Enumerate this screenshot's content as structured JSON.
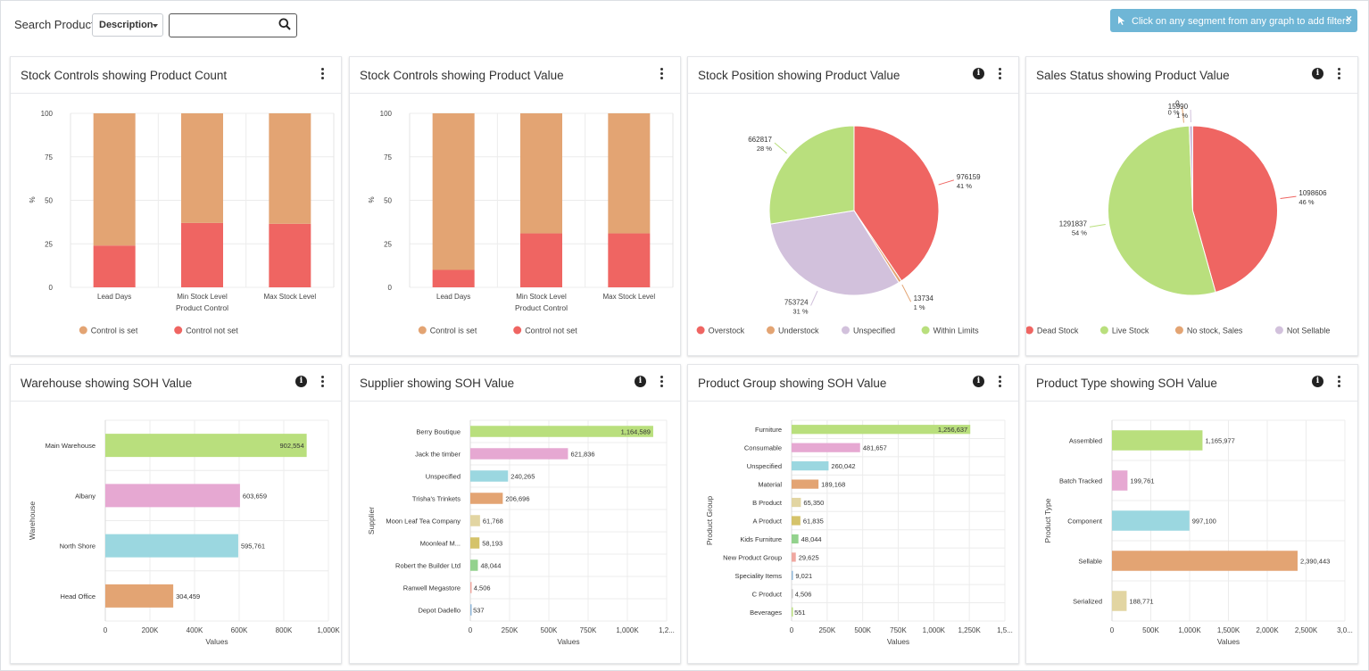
{
  "search": {
    "label": "Search Product",
    "field_selected": "Description",
    "value": ""
  },
  "hint": {
    "text": "Click on any segment from any graph to add filters",
    "close": "×"
  },
  "colors": {
    "orange": "#e3a473",
    "red": "#ef6562",
    "lavender": "#d2c1dc",
    "green": "#b9df7d",
    "pink": "#e6a8d2",
    "cyan": "#9bd7e0",
    "tan": "#e2d5a2",
    "olive": "#d5c36a",
    "lightgreen": "#93d28d",
    "salmon": "#f0a8a1",
    "blue": "#8fb7d9",
    "grey": "#c9c9c9"
  },
  "cards": [
    {
      "title": "Stock Controls showing Product Count",
      "info": false,
      "chart_data": {
        "type": "bar",
        "stacked": true,
        "categories": [
          "Lead Days",
          "Min Stock Level",
          "Max Stock Level"
        ],
        "xlabel": "Product Control",
        "ylabel": "%",
        "ylim": [
          0,
          100
        ],
        "yticks": [
          "0",
          "25",
          "50",
          "75",
          "100"
        ],
        "series": [
          {
            "name": "Control not set",
            "color": "#ef6562",
            "values": [
              24,
              37,
              36.5
            ]
          },
          {
            "name": "Control is set",
            "color": "#e3a473",
            "values": [
              76,
              63,
              63.5
            ]
          }
        ],
        "legend": [
          "Control is set",
          "Control not set"
        ]
      }
    },
    {
      "title": "Stock Controls showing Product Value",
      "info": false,
      "chart_data": {
        "type": "bar",
        "stacked": true,
        "categories": [
          "Lead Days",
          "Min Stock Level",
          "Max Stock Level"
        ],
        "xlabel": "Product Control",
        "ylabel": "%",
        "ylim": [
          0,
          100
        ],
        "yticks": [
          "0",
          "25",
          "50",
          "75",
          "100"
        ],
        "series": [
          {
            "name": "Control not set",
            "color": "#ef6562",
            "values": [
              10,
              31,
              31
            ]
          },
          {
            "name": "Control is set",
            "color": "#e3a473",
            "values": [
              90,
              69,
              69
            ]
          }
        ],
        "legend": [
          "Control is set",
          "Control not set"
        ]
      }
    },
    {
      "title": "Stock Position showing Product Value",
      "info": true,
      "chart_data": {
        "type": "pie",
        "slices": [
          {
            "name": "Overstock",
            "value": 976159,
            "label": "976159",
            "pct": "41 %",
            "color": "#ef6562"
          },
          {
            "name": "Understock",
            "value": 13734,
            "label": "13734",
            "pct": "1 %",
            "color": "#e3a473"
          },
          {
            "name": "Unspecified",
            "value": 753724,
            "label": "753724",
            "pct": "31 %",
            "color": "#d2c1dc"
          },
          {
            "name": "Within Limits",
            "value": 662817,
            "label": "662817",
            "pct": "28 %",
            "color": "#b9df7d"
          }
        ],
        "legend": [
          "Overstock",
          "Understock",
          "Unspecified",
          "Within Limits"
        ]
      }
    },
    {
      "title": "Sales Status showing Product Value",
      "info": true,
      "chart_data": {
        "type": "pie",
        "slices": [
          {
            "name": "Dead Stock",
            "value": 1098606,
            "label": "1098606",
            "pct": "46 %",
            "color": "#ef6562"
          },
          {
            "name": "Live Stock",
            "value": 1291837,
            "label": "1291837",
            "pct": "54 %",
            "color": "#b9df7d"
          },
          {
            "name": "No stock, Sales",
            "value": 0,
            "label": "0",
            "pct": "0 %",
            "color": "#e3a473"
          },
          {
            "name": "Not Sellable",
            "value": 15990,
            "label": "15990",
            "pct": "1 %",
            "color": "#d2c1dc"
          }
        ],
        "legend": [
          "Dead Stock",
          "Live Stock",
          "No stock, Sales",
          "Not Sellable"
        ]
      }
    },
    {
      "title": "Warehouse showing SOH Value",
      "info": true,
      "chart_data": {
        "type": "hbar",
        "ylabel": "Warehouse",
        "xlabel": "Values",
        "xlim": [
          0,
          1000000
        ],
        "xticks": [
          "0",
          "200K",
          "400K",
          "600K",
          "800K",
          "1,000K"
        ],
        "categories": [
          "Main Warehouse",
          "Albany",
          "North Shore",
          "Head Office"
        ],
        "values": [
          902554,
          603659,
          595761,
          304459
        ],
        "labels": [
          "902,554",
          "603,659",
          "595,761",
          "304,459"
        ],
        "colors": [
          "#b9df7d",
          "#e6a8d2",
          "#9bd7e0",
          "#e3a473"
        ]
      }
    },
    {
      "title": "Supplier showing SOH Value",
      "info": true,
      "chart_data": {
        "type": "hbar",
        "ylabel": "Supplier",
        "xlabel": "Values",
        "xlim": [
          0,
          1250000
        ],
        "xticks": [
          "0",
          "250K",
          "500K",
          "750K",
          "1,000K",
          "1,2..."
        ],
        "categories": [
          "Berry Boutique",
          "Jack the timber",
          "Unspecified",
          "Trisha's Trinkets",
          "Moon Leaf Tea Company",
          "Moonleaf M...",
          "Robert the Builder Ltd",
          "Ranwell Megastore",
          "Depot Dadello"
        ],
        "values": [
          1164589,
          621836,
          240265,
          206696,
          61768,
          58193,
          48044,
          4506,
          537
        ],
        "labels": [
          "1,164,589",
          "621,836",
          "240,265",
          "206,696",
          "61,768",
          "58,193",
          "48,044",
          "4,506",
          "537"
        ],
        "colors": [
          "#b9df7d",
          "#e6a8d2",
          "#9bd7e0",
          "#e3a473",
          "#e2d5a2",
          "#d5c36a",
          "#93d28d",
          "#f0a8a1",
          "#8fb7d9"
        ]
      }
    },
    {
      "title": "Product Group showing SOH Value",
      "info": true,
      "chart_data": {
        "type": "hbar",
        "ylabel": "Product Group",
        "xlabel": "Values",
        "xlim": [
          0,
          1500000
        ],
        "xticks": [
          "0",
          "250K",
          "500K",
          "750K",
          "1,000K",
          "1,250K",
          "1,5..."
        ],
        "categories": [
          "Furniture",
          "Consumable",
          "Unspecified",
          "Material",
          "B Product",
          "A Product",
          "Kids Furniture",
          "New Product Group",
          "Speciality Items",
          "C Product",
          "Beverages"
        ],
        "values": [
          1256637,
          481657,
          260042,
          189168,
          65350,
          61835,
          48044,
          29625,
          9021,
          4506,
          551
        ],
        "labels": [
          "1,256,637",
          "481,657",
          "260,042",
          "189,168",
          "65,350",
          "61,835",
          "48,044",
          "29,625",
          "9,021",
          "4,506",
          "551"
        ],
        "colors": [
          "#b9df7d",
          "#e6a8d2",
          "#9bd7e0",
          "#e3a473",
          "#e2d5a2",
          "#d5c36a",
          "#93d28d",
          "#f0a8a1",
          "#8fb7d9",
          "#c9c9c9",
          "#b9df7d"
        ]
      }
    },
    {
      "title": "Product Type showing SOH Value",
      "info": true,
      "chart_data": {
        "type": "hbar",
        "ylabel": "Product Type",
        "xlabel": "Values",
        "xlim": [
          0,
          3000000
        ],
        "xticks": [
          "0",
          "500K",
          "1,000K",
          "1,500K",
          "2,000K",
          "2,500K",
          "3,0..."
        ],
        "categories": [
          "Assembled",
          "Batch Tracked",
          "Component",
          "Sellable",
          "Serialized"
        ],
        "values": [
          1165977,
          199761,
          997100,
          2390443,
          188771
        ],
        "labels": [
          "1,165,977",
          "199,761",
          "997,100",
          "2,390,443",
          "188,771"
        ],
        "colors": [
          "#b9df7d",
          "#e6a8d2",
          "#9bd7e0",
          "#e3a473",
          "#e2d5a2"
        ]
      }
    }
  ]
}
